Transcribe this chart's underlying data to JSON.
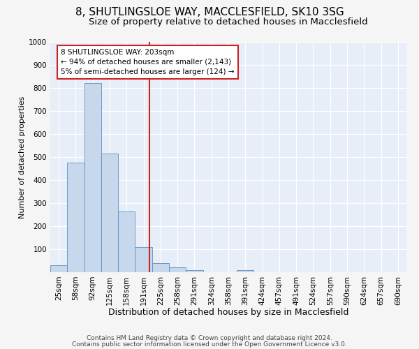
{
  "title1": "8, SHUTLINGSLOE WAY, MACCLESFIELD, SK10 3SG",
  "title2": "Size of property relative to detached houses in Macclesfield",
  "xlabel": "Distribution of detached houses by size in Macclesfield",
  "ylabel": "Number of detached properties",
  "bar_color": "#c8d8ec",
  "bar_edge_color": "#5a8fc0",
  "categories": [
    "25sqm",
    "58sqm",
    "92sqm",
    "125sqm",
    "158sqm",
    "191sqm",
    "225sqm",
    "258sqm",
    "291sqm",
    "324sqm",
    "358sqm",
    "391sqm",
    "424sqm",
    "457sqm",
    "491sqm",
    "524sqm",
    "557sqm",
    "590sqm",
    "624sqm",
    "657sqm",
    "690sqm"
  ],
  "values": [
    30,
    475,
    820,
    515,
    265,
    110,
    40,
    20,
    10,
    0,
    0,
    10,
    0,
    0,
    0,
    0,
    0,
    0,
    0,
    0,
    0
  ],
  "ylim": [
    0,
    1000
  ],
  "property_sqm": 203,
  "annotation_line1": "8 SHUTLINGSLOE WAY: 203sqm",
  "annotation_line2": "← 94% of detached houses are smaller (2,143)",
  "annotation_line3": "5% of semi-detached houses are larger (124) →",
  "annotation_box_facecolor": "#ffffff",
  "annotation_box_edgecolor": "#cc2222",
  "red_line_color": "#cc2222",
  "footer1": "Contains HM Land Registry data © Crown copyright and database right 2024.",
  "footer2": "Contains public sector information licensed under the Open Government Licence v3.0.",
  "fig_bg": "#f5f5f5",
  "ax_bg": "#e8eef8",
  "grid_color": "#ffffff",
  "title1_fontsize": 11,
  "title2_fontsize": 9.5,
  "ylabel_fontsize": 8,
  "xlabel_fontsize": 9,
  "tick_fontsize": 7.5,
  "footer_fontsize": 6.5
}
